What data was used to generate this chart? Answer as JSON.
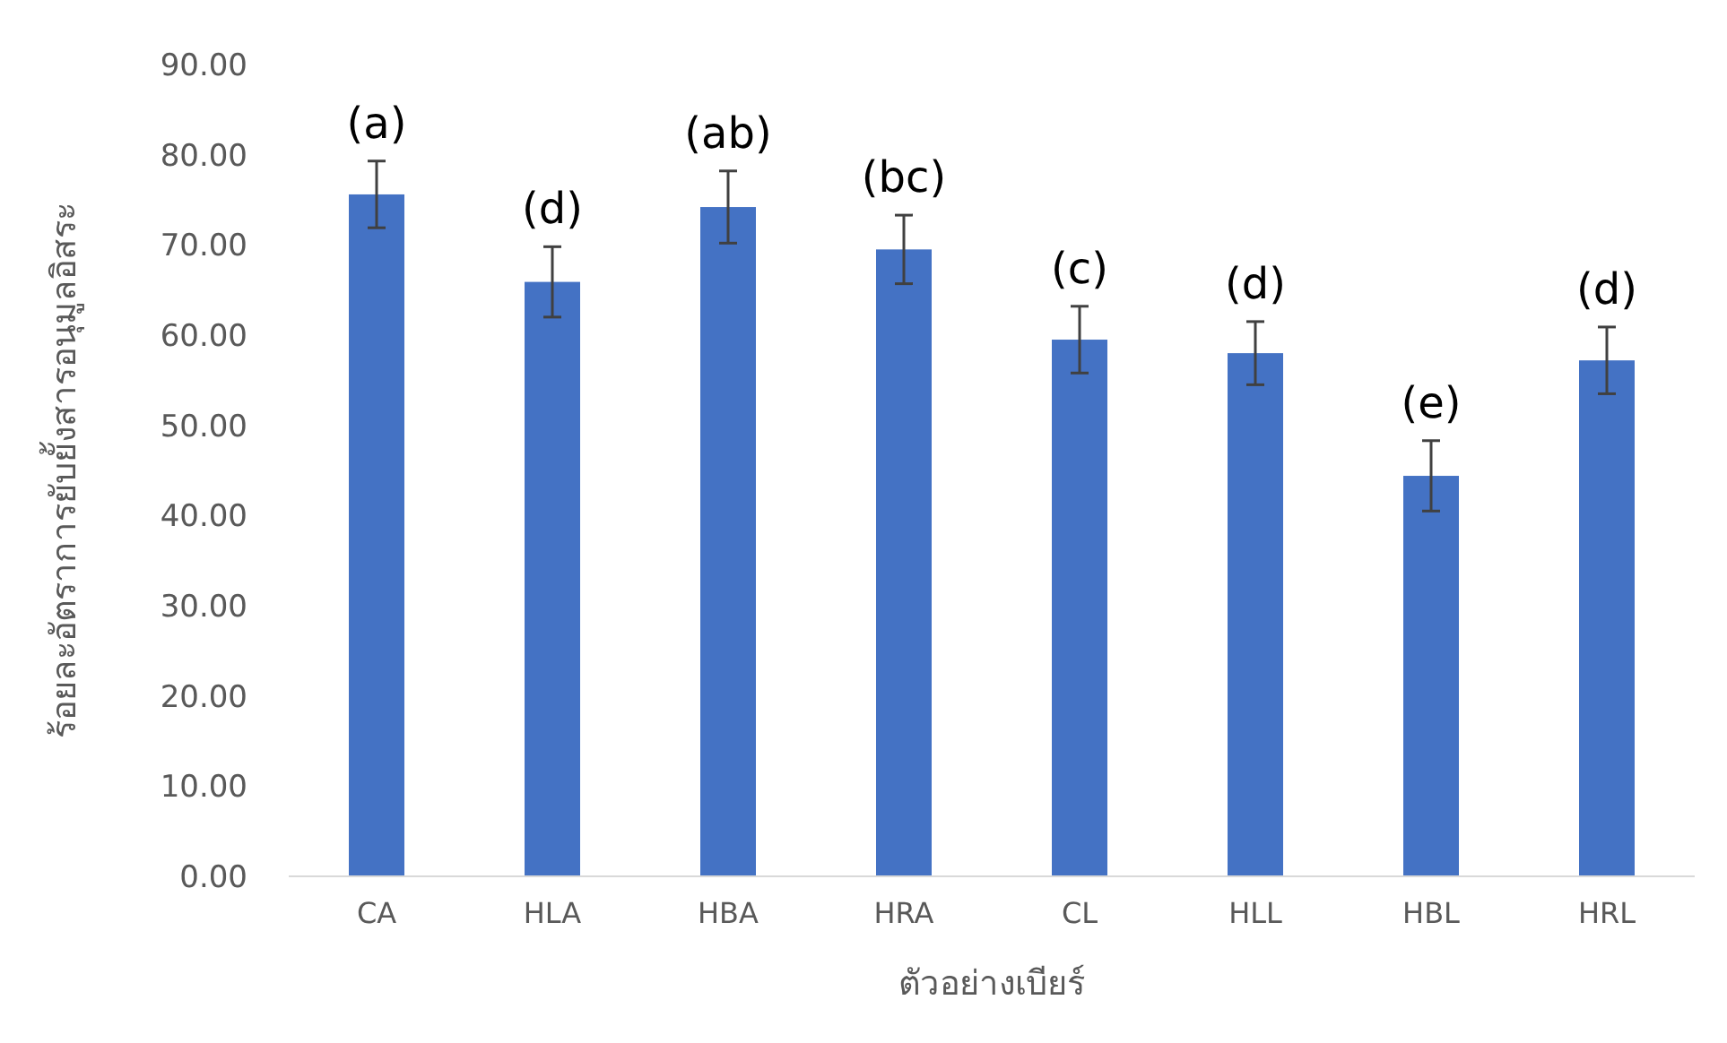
{
  "chart_data": {
    "type": "bar",
    "xlabel": "ตัวอย่างเบียร์",
    "ylabel": "ร้อยละอัตราการยับยั้งสารอนุมูลอิสระ",
    "categories": [
      "CA",
      "HLA",
      "HBA",
      "HRA",
      "CL",
      "HLL",
      "HBL",
      "HRL"
    ],
    "values": [
      75.6,
      65.9,
      74.2,
      69.5,
      59.5,
      58.0,
      44.4,
      57.2
    ],
    "errors": [
      3.7,
      3.9,
      4.0,
      3.8,
      3.7,
      3.5,
      3.9,
      3.7
    ],
    "color": "#4472c4",
    "ylim": [
      0,
      90
    ],
    "yticks": [
      {
        "value": 0,
        "label": "0.00"
      },
      {
        "value": 10,
        "label": "10.00"
      },
      {
        "value": 20,
        "label": "20.00"
      },
      {
        "value": 30,
        "label": "30.00"
      },
      {
        "value": 40,
        "label": "40.00"
      },
      {
        "value": 50,
        "label": "50.00"
      },
      {
        "value": 60,
        "label": "60.00"
      },
      {
        "value": 70,
        "label": "70.00"
      },
      {
        "value": 80,
        "label": "80.00"
      },
      {
        "value": 90,
        "label": "90.00"
      }
    ],
    "annotations": [
      {
        "text": "(a)",
        "x": "CA",
        "y": 79.3
      },
      {
        "text": "(d)",
        "x": "HLA",
        "y": 69.8
      },
      {
        "text": "(ab)",
        "x": "HBA",
        "y": 78.2
      },
      {
        "text": "(bc)",
        "x": "HRA",
        "y": 73.3
      },
      {
        "text": "(c)",
        "x": "CL",
        "y": 63.2
      },
      {
        "text": "(d)",
        "x": "HLL",
        "y": 61.5
      },
      {
        "text": "(e)",
        "x": "HBL",
        "y": 48.3
      },
      {
        "text": "(d)",
        "x": "HRL",
        "y": 60.9
      }
    ]
  }
}
